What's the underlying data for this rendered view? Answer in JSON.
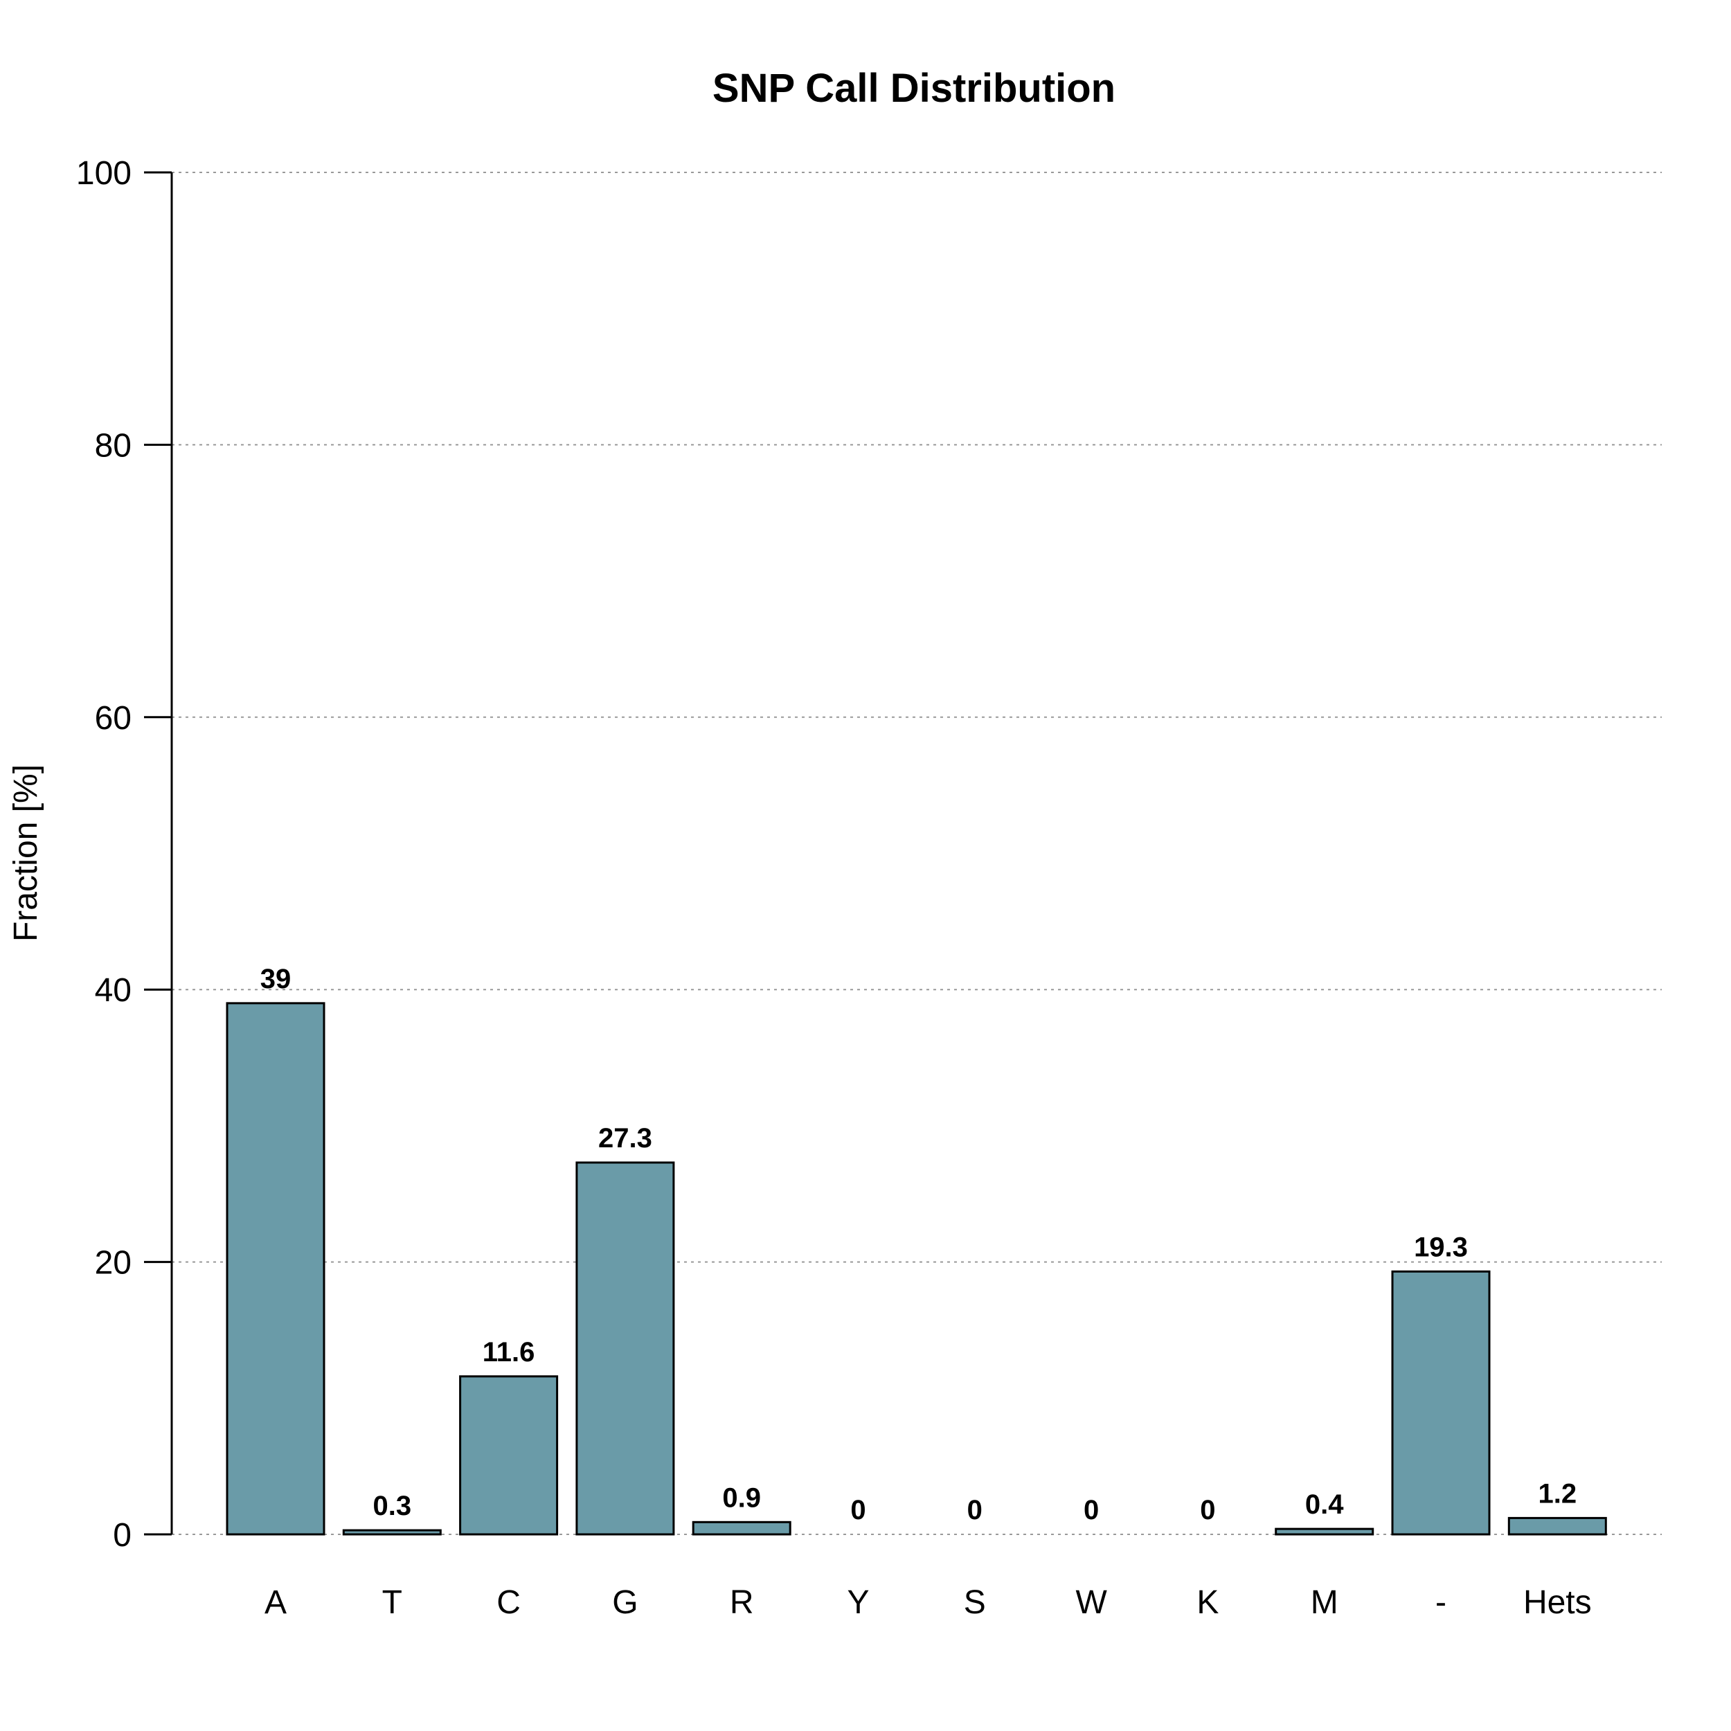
{
  "chart_data": {
    "type": "bar",
    "title": "SNP Call Distribution",
    "xlabel": "",
    "ylabel": "Fraction [%]",
    "categories": [
      "A",
      "T",
      "C",
      "G",
      "R",
      "Y",
      "S",
      "W",
      "K",
      "M",
      "-",
      "Hets"
    ],
    "values": [
      39,
      0.3,
      11.6,
      27.3,
      0.9,
      0,
      0,
      0,
      0,
      0.4,
      19.3,
      1.2
    ],
    "value_labels": [
      "39",
      "0.3",
      "11.6",
      "27.3",
      "0.9",
      "0",
      "0",
      "0",
      "0",
      "0.4",
      "19.3",
      "1.2"
    ],
    "ylim": [
      0,
      100
    ],
    "yticks": [
      0,
      20,
      40,
      60,
      80,
      100
    ],
    "ytick_labels": [
      "0",
      "20",
      "40",
      "60",
      "80",
      "100"
    ],
    "grid": "horizontal-dotted",
    "legend": "none",
    "bar_color": "#6a9ba8",
    "bar_edge_color": "#000000",
    "grid_color": "#999999"
  }
}
